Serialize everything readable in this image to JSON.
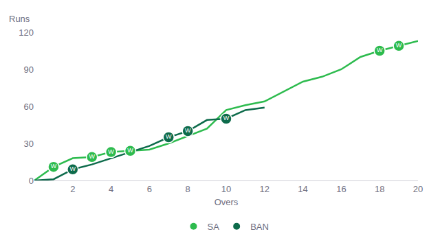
{
  "chart_data": {
    "type": "line",
    "x_label": "Overs",
    "y_label": "Runs",
    "xlim": [
      0,
      20
    ],
    "xticks": [
      2,
      4,
      6,
      8,
      10,
      12,
      14,
      16,
      18,
      20
    ],
    "ylim": [
      0,
      120
    ],
    "yticks": [
      0,
      30,
      60,
      90,
      120
    ],
    "grid": false,
    "legend": "bottom",
    "marker": "circle",
    "wicket_label": "W",
    "series": [
      {
        "name": "SA",
        "color": "#2dbb4e",
        "x": [
          0,
          1,
          2,
          3,
          4,
          5,
          6,
          7,
          8,
          9,
          10,
          11,
          12,
          13,
          14,
          15,
          16,
          17,
          18,
          19,
          20
        ],
        "values": [
          0,
          11,
          18,
          19,
          23,
          24,
          25,
          30,
          36,
          42,
          57,
          61,
          64,
          72,
          80,
          84,
          90,
          100,
          105,
          109,
          113
        ],
        "wickets": [
          1,
          3,
          4,
          5,
          18,
          19
        ]
      },
      {
        "name": "BAN",
        "color": "#0d6b4b",
        "x": [
          0,
          1,
          2,
          3,
          4,
          5,
          6,
          7,
          8,
          9,
          10,
          11,
          12
        ],
        "values": [
          0,
          1,
          9,
          13,
          18,
          23,
          28,
          35,
          40,
          49,
          50,
          57,
          59
        ],
        "wickets": [
          2,
          7,
          8,
          10
        ]
      }
    ]
  }
}
